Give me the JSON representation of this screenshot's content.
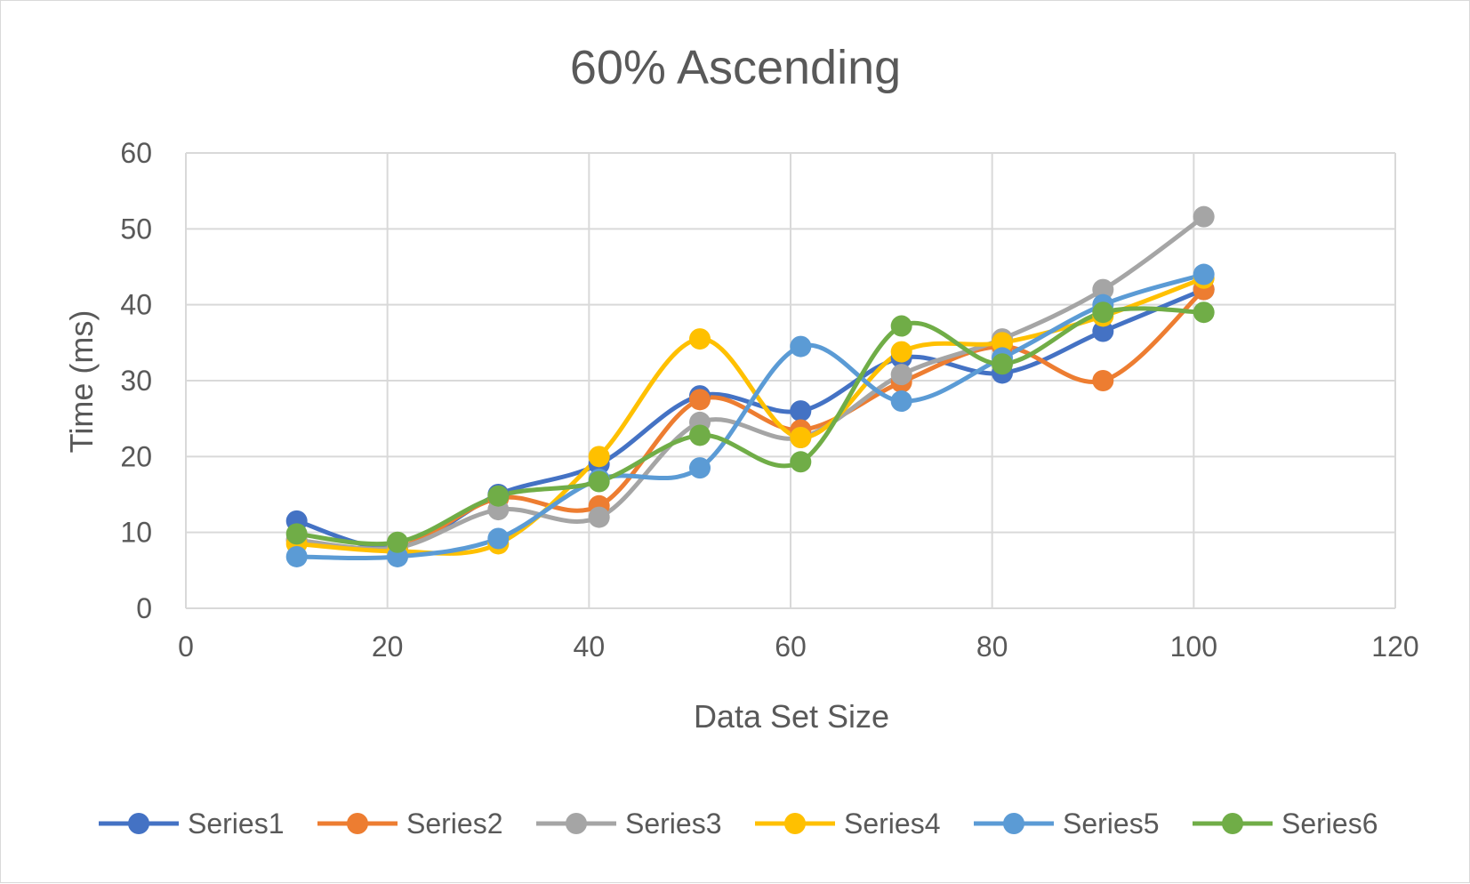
{
  "chart_data": {
    "type": "line",
    "title": "60% Ascending",
    "xlabel": "Data Set Size",
    "ylabel": "Time (ms)",
    "xlim": [
      0,
      120
    ],
    "ylim": [
      0,
      60
    ],
    "xticks": [
      "0",
      "20",
      "40",
      "60",
      "80",
      "100",
      "120"
    ],
    "yticks": [
      "0",
      "10",
      "20",
      "30",
      "40",
      "50",
      "60"
    ],
    "grid": true,
    "smooth": true,
    "legend_position": "bottom",
    "x": [
      11,
      21,
      31,
      41,
      51,
      61,
      71,
      81,
      91,
      101
    ],
    "series": [
      {
        "name": "Series1",
        "color": "#4472C4",
        "values": [
          11.5,
          8.0,
          15.0,
          19.0,
          28.0,
          26.0,
          33.0,
          31.0,
          36.5,
          42.0
        ]
      },
      {
        "name": "Series2",
        "color": "#ED7D31",
        "values": [
          9.0,
          8.0,
          14.5,
          13.5,
          27.5,
          23.5,
          29.8,
          34.5,
          30.0,
          42.0
        ]
      },
      {
        "name": "Series3",
        "color": "#A5A5A5",
        "values": [
          9.0,
          8.0,
          13.0,
          12.0,
          24.5,
          22.5,
          30.8,
          35.5,
          42.0,
          51.6
        ]
      },
      {
        "name": "Series4",
        "color": "#FFC000",
        "values": [
          8.5,
          7.5,
          8.5,
          20.0,
          35.5,
          22.5,
          33.8,
          35.0,
          38.5,
          43.5
        ]
      },
      {
        "name": "Series5",
        "color": "#5B9BD5",
        "values": [
          6.8,
          6.8,
          9.2,
          17.0,
          18.5,
          34.5,
          27.3,
          33.0,
          40.0,
          44.0
        ]
      },
      {
        "name": "Series6",
        "color": "#70AD47",
        "values": [
          9.8,
          8.7,
          14.8,
          16.7,
          22.8,
          19.3,
          37.2,
          32.2,
          39.0,
          39.0
        ]
      }
    ]
  }
}
